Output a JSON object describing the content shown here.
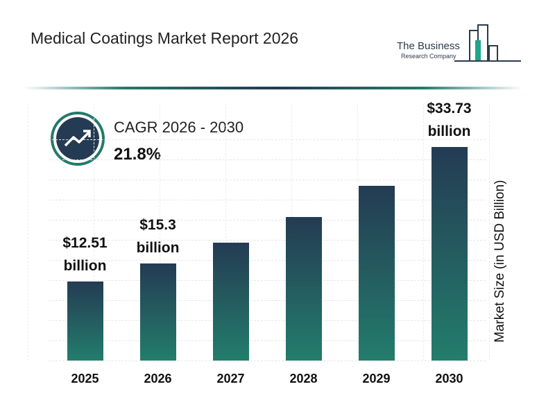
{
  "logo": {
    "name": "The Business",
    "subname": "Research Company"
  },
  "chart_data": {
    "type": "bar",
    "title": "Medical Coatings Market Report 2026",
    "cagr_label": "CAGR 2026 - 2030",
    "cagr_value": "21.8%",
    "y_label": "Market Size (in USD Billion)",
    "categories": [
      "2025",
      "2026",
      "2027",
      "2028",
      "2029",
      "2030"
    ],
    "values": [
      12.51,
      15.3,
      18.64,
      22.7,
      27.65,
      33.73
    ],
    "value_labels": [
      "$12.51 billion",
      "$15.3 billion",
      null,
      null,
      null,
      "$33.73 billion"
    ]
  }
}
